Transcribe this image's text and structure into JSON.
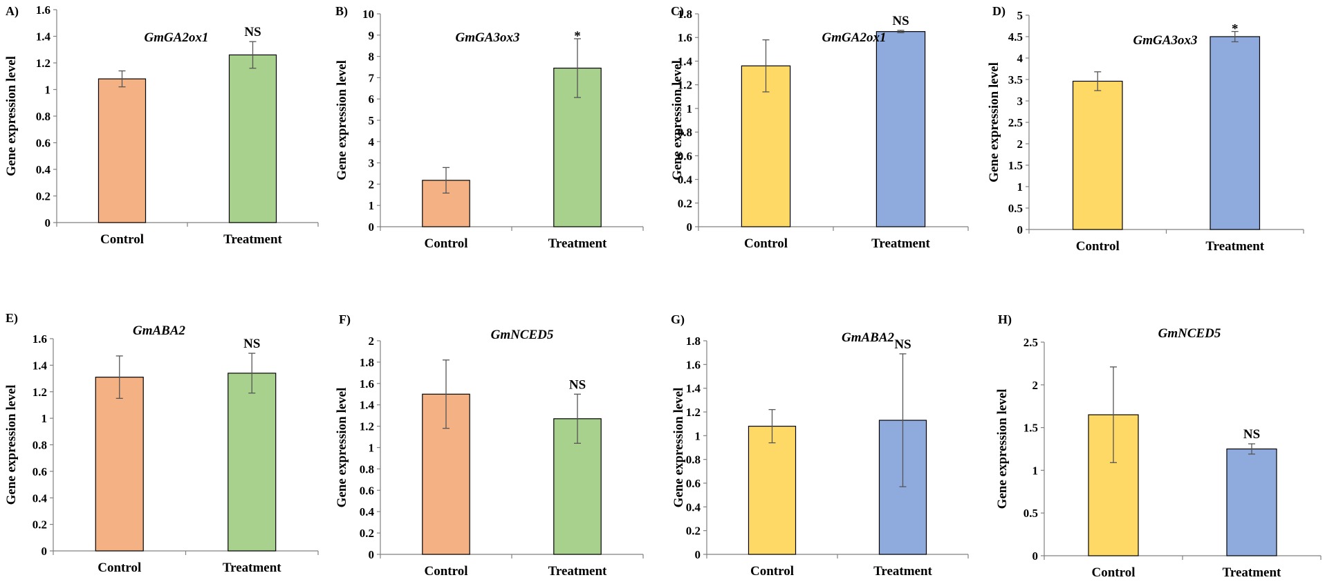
{
  "figure": {
    "ylabel": "Gene expression level"
  },
  "colors": {
    "control_orange": "#F4B183",
    "treatment_green": "#A9D18E",
    "control_yellow": "#FFD966",
    "treatment_blue": "#8FAADC",
    "bar_border": "#000000",
    "axis": "#808080",
    "errorbar": "#555555"
  },
  "chart_data": [
    {
      "type": "bar",
      "panel": "A)",
      "title": "GmGA2ox1",
      "ylabel": "Gene expression level",
      "categories": [
        "Control",
        "Treatment"
      ],
      "values": [
        1.08,
        1.26
      ],
      "errors": [
        0.06,
        0.1
      ],
      "ylim": [
        0,
        1.6
      ],
      "ystep": 0.2,
      "yticks": [
        "0",
        "0.2",
        "0.4",
        "0.6",
        "0.8",
        "1",
        "1.2",
        "1.4",
        "1.6"
      ],
      "annotation": "NS",
      "annotation_index": 1,
      "colors": [
        "#F4B183",
        "#A9D18E"
      ]
    },
    {
      "type": "bar",
      "panel": "B)",
      "title": "GmGA3ox3",
      "ylabel": "Gene expression level",
      "categories": [
        "Control",
        "Treatment"
      ],
      "values": [
        2.18,
        7.45
      ],
      "errors": [
        0.6,
        1.38
      ],
      "ylim": [
        0,
        10
      ],
      "ystep": 1,
      "yticks": [
        "0",
        "1",
        "2",
        "3",
        "4",
        "5",
        "6",
        "7",
        "8",
        "9",
        "10"
      ],
      "annotation": "*",
      "annotation_index": 1,
      "colors": [
        "#F4B183",
        "#A9D18E"
      ]
    },
    {
      "type": "bar",
      "panel": "C)",
      "title": "GmGA2ox1",
      "ylabel": "Gene expression level",
      "categories": [
        "Control",
        "Treatment"
      ],
      "values": [
        1.36,
        1.65
      ],
      "errors": [
        0.22,
        0.01
      ],
      "ylim": [
        0,
        1.8
      ],
      "ystep": 0.2,
      "yticks": [
        "0",
        "0.2",
        "0.4",
        "0.6",
        "0.8",
        "1",
        "1.2",
        "1.4",
        "1.6",
        "1.8"
      ],
      "annotation": "NS",
      "annotation_index": 1,
      "colors": [
        "#FFD966",
        "#8FAADC"
      ]
    },
    {
      "type": "bar",
      "panel": "D)",
      "title": "GmGA3ox3",
      "ylabel": "Gene expression level",
      "categories": [
        "Control",
        "Treatment"
      ],
      "values": [
        3.46,
        4.5
      ],
      "errors": [
        0.22,
        0.12
      ],
      "ylim": [
        0,
        5
      ],
      "ystep": 0.5,
      "yticks": [
        "0",
        "0.5",
        "1",
        "1.5",
        "2",
        "2.5",
        "3",
        "3.5",
        "4",
        "4.5",
        "5"
      ],
      "annotation": "*",
      "annotation_index": 1,
      "colors": [
        "#FFD966",
        "#8FAADC"
      ]
    },
    {
      "type": "bar",
      "panel": "E)",
      "title": "GmABA2",
      "ylabel": "Gene expression level",
      "categories": [
        "Control",
        "Treatment"
      ],
      "values": [
        1.31,
        1.34
      ],
      "errors": [
        0.16,
        0.15
      ],
      "ylim": [
        0,
        1.6
      ],
      "ystep": 0.2,
      "yticks": [
        "0",
        "0.2",
        "0.4",
        "0.6",
        "0.8",
        "1",
        "1.2",
        "1.4",
        "1.6"
      ],
      "annotation": "NS",
      "annotation_index": 1,
      "colors": [
        "#F4B183",
        "#A9D18E"
      ]
    },
    {
      "type": "bar",
      "panel": "F)",
      "title": "GmNCED5",
      "ylabel": "Gene expression level",
      "categories": [
        "Control",
        "Treatment"
      ],
      "values": [
        1.5,
        1.27
      ],
      "errors": [
        0.32,
        0.23
      ],
      "ylim": [
        0,
        2
      ],
      "ystep": 0.2,
      "yticks": [
        "0",
        "0.2",
        "0.4",
        "0.6",
        "0.8",
        "1",
        "1.2",
        "1.4",
        "1.6",
        "1.8",
        "2"
      ],
      "annotation": "NS",
      "annotation_index": 1,
      "colors": [
        "#F4B183",
        "#A9D18E"
      ]
    },
    {
      "type": "bar",
      "panel": "G)",
      "title": "GmABA2",
      "ylabel": "Gene expression level",
      "categories": [
        "Control",
        "Treatment"
      ],
      "values": [
        1.08,
        1.13
      ],
      "errors": [
        0.14,
        0.56
      ],
      "ylim": [
        0,
        1.8
      ],
      "ystep": 0.2,
      "yticks": [
        "0",
        "0.2",
        "0.4",
        "0.6",
        "0.8",
        "1",
        "1.2",
        "1.4",
        "1.6",
        "1.8"
      ],
      "annotation": "NS",
      "annotation_index": 1,
      "colors": [
        "#FFD966",
        "#8FAADC"
      ]
    },
    {
      "type": "bar",
      "panel": "H)",
      "title": "GmNCED5",
      "ylabel": "Gene expression level",
      "categories": [
        "Control",
        "Treatment"
      ],
      "values": [
        1.65,
        1.25
      ],
      "errors": [
        0.56,
        0.06
      ],
      "ylim": [
        0,
        2.5
      ],
      "ystep": 0.5,
      "yticks": [
        "0",
        "0.5",
        "1",
        "1.5",
        "2",
        "2.5"
      ],
      "annotation": "NS",
      "annotation_index": 1,
      "colors": [
        "#FFD966",
        "#8FAADC"
      ]
    }
  ]
}
